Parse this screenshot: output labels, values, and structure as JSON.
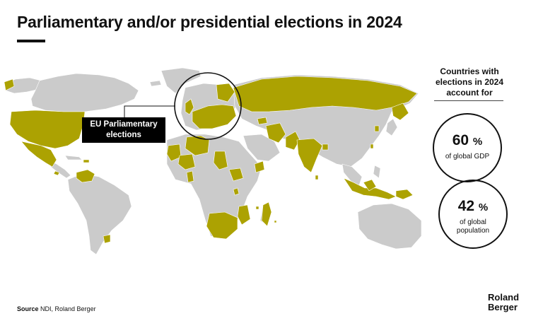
{
  "title": "Parliamentary and/or presidential elections in 2024",
  "map": {
    "callout_label": "EU Parliamentary elections",
    "colors": {
      "election": "#ACA202",
      "no_election": "#CBCBCB",
      "ocean": "#FFFFFF",
      "borders": "#FFFFFF"
    }
  },
  "legend": {
    "heading": "Countries with elections in 2024 account for",
    "stats": [
      {
        "value": "60",
        "unit": "%",
        "caption": "of global GDP"
      },
      {
        "value": "42",
        "unit": "%",
        "caption": "of global population"
      }
    ]
  },
  "source": {
    "label": "Source",
    "text": "NDI, Roland Berger"
  },
  "logo": {
    "line1": "Roland",
    "line2": "Berger"
  }
}
